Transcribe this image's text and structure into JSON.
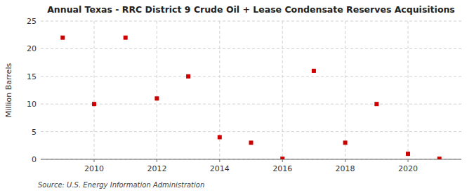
{
  "chart_data": {
    "type": "scatter",
    "title": "Annual Texas - RRC District 9 Crude Oil + Lease Condensate Reserves Acquisitions",
    "y_label": "Million Barrels",
    "annotation": "Source: U.S. Energy Information Administration",
    "x": [
      2009,
      2010,
      2011,
      2012,
      2013,
      2014,
      2015,
      2016,
      2017,
      2018,
      2019,
      2020,
      2021
    ],
    "values": [
      22.0,
      10.0,
      22.0,
      11.0,
      15.0,
      4.0,
      3.0,
      0.1,
      16.0,
      3.0,
      10.0,
      1.0,
      0.1
    ],
    "color": "#cc0000",
    "marker": "square",
    "xlim": [
      2008.3,
      2021.7
    ],
    "ylim": [
      0,
      25
    ],
    "xticks": [
      2010,
      2012,
      2014,
      2016,
      2018,
      2020
    ],
    "yticks": [
      0,
      5,
      10,
      15,
      20,
      25
    ],
    "grid": true
  }
}
